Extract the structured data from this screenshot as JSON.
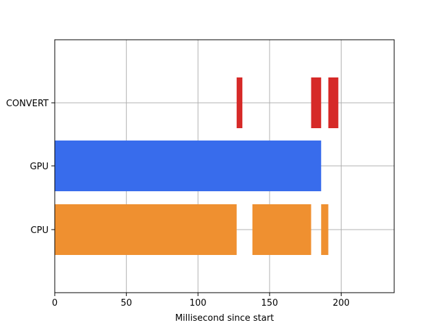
{
  "chart_data": {
    "type": "bar",
    "orientation": "horizontal",
    "title": "",
    "xlabel": "Millisecond since start",
    "ylabel": "",
    "xlim": [
      0,
      237
    ],
    "xticks": [
      0,
      50,
      100,
      150,
      200
    ],
    "categories": [
      "CPU",
      "GPU",
      "CONVERT"
    ],
    "grid": true,
    "legend": "none",
    "series": [
      {
        "category": "CPU",
        "color": "#ef9030",
        "segments": [
          {
            "start": 0,
            "end": 127
          },
          {
            "start": 138,
            "end": 179
          },
          {
            "start": 186,
            "end": 191
          }
        ]
      },
      {
        "category": "GPU",
        "color": "#386cec",
        "segments": [
          {
            "start": 0,
            "end": 186
          }
        ]
      },
      {
        "category": "CONVERT",
        "color": "#d62a28",
        "segments": [
          {
            "start": 127,
            "end": 131
          },
          {
            "start": 179,
            "end": 186
          },
          {
            "start": 191,
            "end": 198
          }
        ]
      }
    ]
  }
}
